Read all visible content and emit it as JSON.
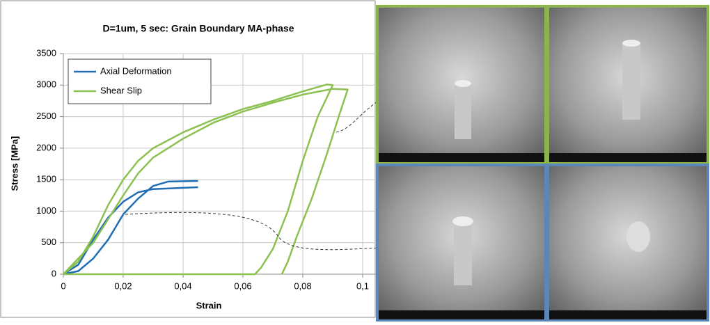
{
  "chart_data": {
    "type": "line",
    "title": "D=1um, 5 sec:  Grain Boundary MA-phase",
    "x_label": "Strain",
    "y_label": "Stress [MPa]",
    "xlim": [
      0,
      0.1
    ],
    "ylim": [
      0,
      3500
    ],
    "xticks": [
      0,
      {
        "value": 0.02,
        "label": "0,02"
      },
      {
        "value": 0.04,
        "label": "0,04"
      },
      {
        "value": 0.06,
        "label": "0,06"
      },
      {
        "value": 0.08,
        "label": "0,08"
      },
      {
        "value": 0.1,
        "label": "0,1"
      }
    ],
    "yticks": [
      0,
      500,
      1000,
      1500,
      2000,
      2500,
      3000,
      3500
    ],
    "grid": true,
    "legend": "upper-left",
    "series": [
      {
        "name": "Axial Deformation",
        "color": "#1f6db5",
        "x": [
          0,
          0.005,
          0.01,
          0.015,
          0.02,
          0.025,
          0.03,
          0.035,
          0.045,
          null,
          0,
          0.005,
          0.01,
          0.015,
          0.02,
          0.025,
          0.03,
          0.045
        ],
        "values": [
          0,
          50,
          250,
          550,
          950,
          1200,
          1400,
          1470,
          1480,
          null,
          0,
          150,
          550,
          900,
          1150,
          1300,
          1350,
          1380
        ]
      },
      {
        "name": "Shear Slip",
        "color": "#8cc152",
        "x": [
          0,
          0.005,
          0.01,
          0.015,
          0.02,
          0.025,
          0.03,
          0.04,
          0.05,
          0.06,
          0.07,
          0.08,
          0.088,
          0.09,
          0.085,
          0.08,
          0.075,
          0.07,
          0.066,
          0.064,
          0.03,
          0,
          null,
          0,
          0.01,
          0.02,
          0.025,
          0.03,
          0.04,
          0.05,
          0.06,
          0.07,
          0.08,
          0.09,
          0.095,
          0.092,
          0.088,
          0.083,
          0.078,
          0.075,
          0.073
        ],
        "values": [
          0,
          200,
          600,
          1100,
          1500,
          1800,
          2000,
          2250,
          2450,
          2620,
          2750,
          2900,
          3010,
          3000,
          2500,
          1800,
          1000,
          400,
          100,
          0,
          0,
          0,
          null,
          0,
          500,
          1250,
          1600,
          1850,
          2150,
          2400,
          2580,
          2720,
          2850,
          2940,
          2930,
          2500,
          1900,
          1200,
          600,
          200,
          0
        ]
      }
    ]
  }
}
